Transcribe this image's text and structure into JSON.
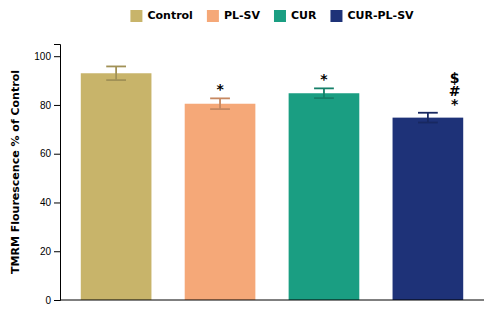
{
  "chart_data": {
    "type": "bar",
    "ylabel": "TMRM Flourescence % of Control",
    "categories": [
      "Control",
      "PL-SV",
      "CUR",
      "CUR-PL-SV"
    ],
    "values": [
      93.0,
      80.5,
      84.8,
      74.8
    ],
    "errors": [
      2.8,
      2.2,
      2.0,
      2.0
    ],
    "colors": [
      "#C8B46A",
      "#F5A878",
      "#1A9E82",
      "#1E3278"
    ],
    "ylim": [
      0,
      105
    ],
    "yticks": [
      0,
      20,
      40,
      60,
      80,
      100
    ],
    "grid": false,
    "legend": "top",
    "tick_labels": "y",
    "annotations": [
      {
        "category": "PL-SV",
        "text": "*"
      },
      {
        "category": "CUR",
        "text": "*"
      },
      {
        "category": "CUR-PL-SV",
        "text": "$"
      },
      {
        "category": "CUR-PL-SV",
        "text": "#"
      },
      {
        "category": "CUR-PL-SV",
        "text": "*"
      }
    ]
  }
}
